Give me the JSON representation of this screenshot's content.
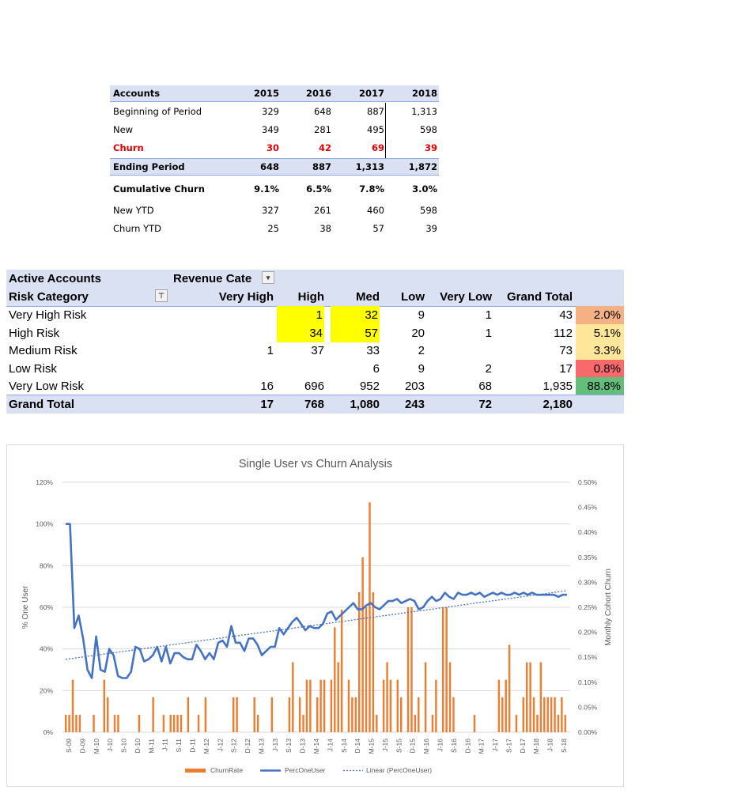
{
  "table1": {
    "header": {
      "label": "Accounts",
      "years": [
        "2015",
        "2016",
        "2017",
        "2018"
      ]
    },
    "rows": [
      {
        "label": "Beginning of Period",
        "values": [
          "329",
          "648",
          "887",
          "1,313"
        ]
      },
      {
        "label": "New",
        "values": [
          "349",
          "281",
          "495",
          "598"
        ]
      },
      {
        "label": "Churn",
        "values": [
          "30",
          "42",
          "69",
          "39"
        ]
      },
      {
        "label": "Ending Period",
        "values": [
          "648",
          "887",
          "1,313",
          "1,872"
        ]
      },
      {
        "label": "Cumulative Churn",
        "values": [
          "9.1%",
          "6.5%",
          "7.8%",
          "3.0%"
        ]
      },
      {
        "label": "New YTD",
        "values": [
          "327",
          "261",
          "460",
          "598"
        ]
      },
      {
        "label": "Churn YTD",
        "values": [
          "25",
          "38",
          "57",
          "39"
        ]
      }
    ]
  },
  "table2": {
    "title": "Active Accounts",
    "filter_label": "Revenue Cate",
    "row_header": "Risk Category",
    "columns": [
      "Very High",
      "High",
      "Med",
      "Low",
      "Very Low",
      "Grand Total"
    ],
    "rows": [
      {
        "label": "Very High Risk",
        "values": [
          "",
          "1",
          "32",
          "9",
          "1",
          "43"
        ],
        "pct": "2.0%",
        "pct_color": "#f4b183"
      },
      {
        "label": "High Risk",
        "values": [
          "",
          "34",
          "57",
          "20",
          "1",
          "112"
        ],
        "pct": "5.1%",
        "pct_color": "#ffe699"
      },
      {
        "label": "Medium Risk",
        "values": [
          "1",
          "37",
          "33",
          "2",
          "",
          "73"
        ],
        "pct": "3.3%",
        "pct_color": "#ffe699"
      },
      {
        "label": "Low Risk",
        "values": [
          "",
          "",
          "6",
          "9",
          "2",
          "17"
        ],
        "pct": "0.8%",
        "pct_color": "#f8696b"
      },
      {
        "label": "Very Low Risk",
        "values": [
          "16",
          "696",
          "952",
          "203",
          "68",
          "1,935"
        ],
        "pct": "88.8%",
        "pct_color": "#63be7b"
      }
    ],
    "total": {
      "label": "Grand Total",
      "values": [
        "17",
        "768",
        "1,080",
        "243",
        "72",
        "2,180"
      ]
    },
    "highlight_color": "#ffff00",
    "header_fill": "#d9e1f2"
  },
  "chart_data": {
    "type": "bar",
    "title": "Single User vs Churn Analysis",
    "ylabel": "% One User",
    "y2label": "Monthly Cohort Churn",
    "ylim": [
      0,
      1.2
    ],
    "y_ticks": [
      "0%",
      "20%",
      "40%",
      "60%",
      "80%",
      "100%",
      "120%"
    ],
    "y2lim": [
      0,
      0.005
    ],
    "y2_ticks": [
      "0.00%",
      "0.05%",
      "0.10%",
      "0.15%",
      "0.20%",
      "0.25%",
      "0.30%",
      "0.35%",
      "0.40%",
      "0.45%",
      "0.50%"
    ],
    "x_tick_labels": [
      "S-09",
      "D-09",
      "M-10",
      "J-10",
      "S-10",
      "D-10",
      "M-11",
      "J-11",
      "S-11",
      "D-11",
      "M-12",
      "J-12",
      "S-12",
      "D-12",
      "M-13",
      "J-13",
      "S-13",
      "D-13",
      "M-14",
      "J-14",
      "S-14",
      "D-14",
      "M-15",
      "J-15",
      "S-15",
      "D-15",
      "M-16",
      "J-16",
      "S-16",
      "D-16",
      "M-17",
      "J-17",
      "S-17",
      "D-17",
      "M-18",
      "J-18",
      "S-18"
    ],
    "legend": [
      "ChurnRate",
      "PercOneUser",
      "Linear (PercOneUser)"
    ],
    "legend_position": "bottom",
    "grid": true,
    "colors": {
      "churn": "#ed7d31",
      "perc": "#4472c4",
      "trend": "#4472c4"
    },
    "series": [
      {
        "name": "ChurnRate",
        "axis": "secondary",
        "values": [
          0.00035,
          0.00035,
          0.00105,
          0.00035,
          0.00035,
          0,
          0,
          0,
          0.00035,
          0,
          0,
          0.00105,
          0.0007,
          0,
          0.00035,
          0.00035,
          0,
          0,
          0,
          0,
          0,
          0.00035,
          0,
          0,
          0,
          0.0007,
          0,
          0,
          0.00035,
          0,
          0.00035,
          0.00035,
          0.00035,
          0.00035,
          0,
          0.0007,
          0,
          0,
          0.00035,
          0,
          0.0007,
          0,
          0,
          0,
          0,
          0,
          0,
          0,
          0.0007,
          0.0007,
          0,
          0,
          0,
          0,
          0.0007,
          0.00035,
          0,
          0,
          0,
          0.0007,
          0,
          0,
          0,
          0,
          0.0007,
          0.0014,
          0,
          0.0007,
          0.00035,
          0.00105,
          0.00105,
          0,
          0.0007,
          0.00105,
          0.00105,
          0,
          0.00105,
          0.0021,
          0.0014,
          0.00245,
          0,
          0.00105,
          0.0007,
          0.0007,
          0.0028,
          0.0035,
          0.0025,
          0.0046,
          0.0028,
          0.00035,
          0,
          0.00105,
          0.0014,
          0.00105,
          0,
          0.00105,
          0.0007,
          0,
          0.0025,
          0.0025,
          0.00035,
          0.0007,
          0,
          0.0014,
          0,
          0.00035,
          0.00105,
          0,
          0.0025,
          0.0025,
          0.0014,
          0.0007,
          0,
          0,
          0,
          0,
          0,
          0.00035,
          0,
          0,
          0,
          0,
          0,
          0,
          0.00105,
          0.0007,
          0.00105,
          0.00175,
          0,
          0.00035,
          0,
          0.0007,
          0.0014,
          0.0014,
          0.0007,
          0.00035,
          0.0014,
          0.0007,
          0.0007,
          0.0007,
          0.0007,
          0.00035,
          0.0007,
          0.00035
        ]
      },
      {
        "name": "PercOneUser",
        "axis": "primary",
        "values": [
          1.0,
          1.0,
          0.5,
          0.56,
          0.45,
          0.3,
          0.26,
          0.46,
          0.3,
          0.29,
          0.4,
          0.37,
          0.27,
          0.26,
          0.26,
          0.29,
          0.41,
          0.4,
          0.34,
          0.35,
          0.37,
          0.41,
          0.34,
          0.41,
          0.33,
          0.38,
          0.38,
          0.36,
          0.35,
          0.35,
          0.42,
          0.39,
          0.35,
          0.38,
          0.35,
          0.43,
          0.44,
          0.41,
          0.51,
          0.43,
          0.43,
          0.39,
          0.45,
          0.45,
          0.42,
          0.37,
          0.39,
          0.41,
          0.41,
          0.5,
          0.47,
          0.5,
          0.53,
          0.55,
          0.52,
          0.49,
          0.51,
          0.5,
          0.5,
          0.52,
          0.57,
          0.58,
          0.54,
          0.56,
          0.58,
          0.6,
          0.62,
          0.59,
          0.59,
          0.61,
          0.62,
          0.6,
          0.59,
          0.61,
          0.63,
          0.63,
          0.64,
          0.62,
          0.63,
          0.64,
          0.63,
          0.59,
          0.6,
          0.63,
          0.65,
          0.63,
          0.64,
          0.67,
          0.65,
          0.64,
          0.67,
          0.66,
          0.66,
          0.67,
          0.66,
          0.67,
          0.65,
          0.66,
          0.67,
          0.66,
          0.67,
          0.66,
          0.66,
          0.67,
          0.66,
          0.67,
          0.66,
          0.67,
          0.66,
          0.66,
          0.66,
          0.66,
          0.66,
          0.65,
          0.66,
          0.66
        ]
      },
      {
        "name": "Linear (PercOneUser)",
        "axis": "primary",
        "values": [
          0.35,
          0.68
        ]
      }
    ]
  }
}
